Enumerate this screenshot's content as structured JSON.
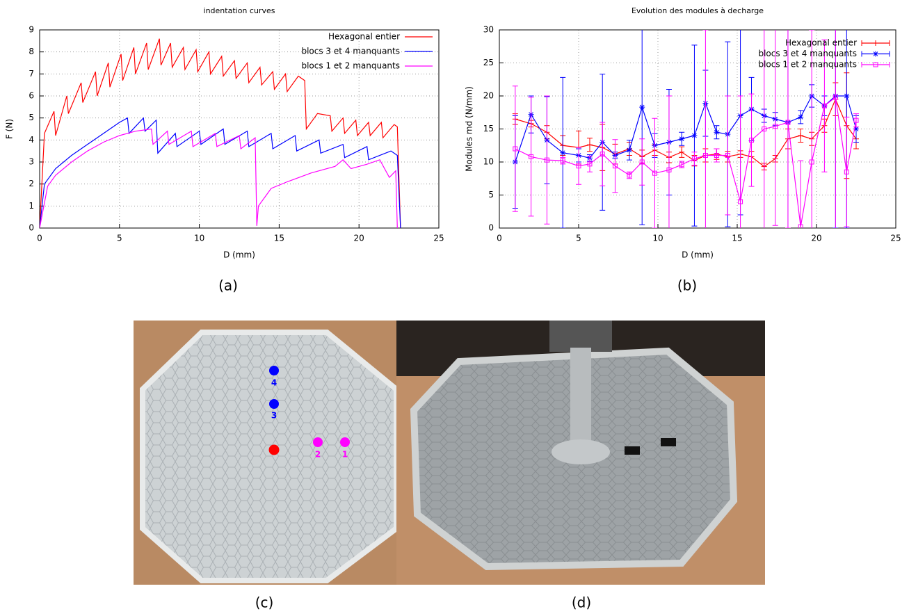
{
  "chart_data": [
    {
      "type": "line",
      "title": "indentation curves",
      "xlabel": "D (mm)",
      "ylabel": "F (N)",
      "xlim": [
        0,
        25
      ],
      "ylim": [
        0,
        9
      ],
      "xticks": [
        0,
        5,
        10,
        15,
        20,
        25
      ],
      "yticks": [
        0,
        1,
        2,
        3,
        4,
        5,
        6,
        7,
        8,
        9
      ],
      "grid": true,
      "legend": "upper right",
      "series": [
        {
          "name": "Hexagonal entier",
          "color": "#ff0000",
          "x": [
            0,
            0.3,
            0.9,
            1.0,
            1.7,
            1.8,
            2.6,
            2.7,
            3.5,
            3.6,
            4.3,
            4.4,
            5.1,
            5.2,
            5.9,
            6.0,
            6.7,
            6.8,
            7.5,
            7.6,
            8.2,
            8.3,
            9.0,
            9.1,
            9.8,
            9.9,
            10.6,
            10.7,
            11.4,
            11.5,
            12.2,
            12.3,
            13.0,
            13.1,
            13.8,
            13.9,
            14.6,
            14.7,
            15.4,
            15.5,
            16.2,
            16.6,
            16.7,
            17.4,
            18.2,
            18.3,
            19.0,
            19.1,
            19.8,
            19.9,
            20.6,
            20.7,
            21.4,
            21.5,
            22.2,
            22.4,
            22.6
          ],
          "values": [
            0,
            4.3,
            5.3,
            4.2,
            6.0,
            5.2,
            6.6,
            5.7,
            7.1,
            6.0,
            7.5,
            6.4,
            7.9,
            6.7,
            8.2,
            7.0,
            8.4,
            7.2,
            8.6,
            7.4,
            8.4,
            7.3,
            8.2,
            7.2,
            8.1,
            7.1,
            8.0,
            7.0,
            7.8,
            6.9,
            7.6,
            6.8,
            7.5,
            6.6,
            7.3,
            6.5,
            7.1,
            6.3,
            7.0,
            6.2,
            6.9,
            6.7,
            4.5,
            5.2,
            5.1,
            4.4,
            5.0,
            4.3,
            4.9,
            4.2,
            4.8,
            4.2,
            4.8,
            4.1,
            4.7,
            4.6,
            0
          ]
        },
        {
          "name": "blocs 3 et 4 manquants",
          "color": "#0000ff",
          "x": [
            0,
            0.3,
            1,
            2,
            3,
            4,
            5,
            5.5,
            5.6,
            6.5,
            6.6,
            7.3,
            7.4,
            8.5,
            8.6,
            10,
            10.1,
            11.5,
            11.6,
            13,
            13.1,
            14.5,
            14.6,
            16,
            16.1,
            17.5,
            17.6,
            19,
            19.1,
            20.5,
            20.6,
            22,
            22.4,
            22.6
          ],
          "values": [
            0,
            2.0,
            2.7,
            3.3,
            3.8,
            4.3,
            4.8,
            5.0,
            4.3,
            5.0,
            4.4,
            4.9,
            3.4,
            4.3,
            3.7,
            4.4,
            3.8,
            4.5,
            3.8,
            4.4,
            3.7,
            4.3,
            3.6,
            4.2,
            3.5,
            4.0,
            3.4,
            3.8,
            3.2,
            3.7,
            3.1,
            3.5,
            3.3,
            0
          ]
        },
        {
          "name": "blocs 1 et 2 manquants",
          "color": "#ff00ff",
          "x": [
            0,
            0.5,
            1,
            2,
            3,
            4,
            5,
            6,
            7,
            7.1,
            8,
            8.1,
            9.5,
            9.6,
            11,
            11.1,
            12.5,
            12.6,
            13.5,
            13.6,
            13.7,
            14.5,
            15.5,
            17,
            18.5,
            19,
            19.5,
            20.5,
            21.3,
            21.9,
            22.3,
            22.4
          ],
          "values": [
            0,
            1.9,
            2.4,
            3.0,
            3.5,
            3.9,
            4.2,
            4.4,
            4.5,
            3.8,
            4.4,
            3.8,
            4.4,
            3.7,
            4.3,
            3.7,
            4.2,
            3.6,
            4.1,
            0.1,
            1.0,
            1.8,
            2.1,
            2.5,
            2.8,
            3.1,
            2.7,
            2.9,
            3.1,
            2.3,
            2.6,
            0
          ]
        }
      ]
    },
    {
      "type": "errorbar",
      "title": "Evolution des modules à decharge",
      "xlabel": "D (mm)",
      "ylabel": "Modules md (N/mm)",
      "xlim": [
        0,
        25
      ],
      "ylim": [
        0,
        30
      ],
      "xticks": [
        0,
        5,
        10,
        15,
        20,
        25
      ],
      "yticks": [
        0,
        5,
        10,
        15,
        20,
        25,
        30
      ],
      "grid": true,
      "legend": "upper right",
      "x": [
        1,
        2,
        3,
        4,
        5,
        5.7,
        6.5,
        7.3,
        8.2,
        9,
        9.8,
        10.7,
        11.5,
        12.3,
        13,
        13.7,
        14.4,
        15.2,
        15.9,
        16.7,
        17.4,
        18.2,
        19,
        19.7,
        20.5,
        21.2,
        21.9,
        22.5
      ],
      "series": [
        {
          "name": "Hexagonal entier",
          "color": "#ff0000",
          "marker": "plus",
          "values": [
            16.5,
            15.8,
            14.5,
            12.5,
            12.2,
            12.6,
            12.2,
            11.2,
            12,
            10.8,
            11.8,
            10.7,
            11.5,
            10.2,
            11,
            11.2,
            10.8,
            11.2,
            10.8,
            9.3,
            10.5,
            13.5,
            14,
            13.5,
            15.5,
            19.5,
            15.5,
            13.5
          ],
          "errors": [
            0.8,
            0.5,
            1,
            1.5,
            2.5,
            1,
            3.5,
            1.5,
            1,
            1,
            0.8,
            0.8,
            0.8,
            0.8,
            1,
            0.8,
            0.8,
            0.5,
            0.8,
            0.5,
            0.5,
            1.5,
            1,
            1,
            1,
            2.5,
            8,
            1.5
          ]
        },
        {
          "name": "blocs 3 et 4 manquants",
          "color": "#0000ff",
          "marker": "star",
          "values": [
            10,
            17.2,
            13.3,
            11.4,
            11,
            10.6,
            13,
            11,
            11.8,
            18.3,
            12.5,
            13,
            13.5,
            14,
            18.9,
            14.5,
            14.2,
            17,
            18,
            17,
            16.5,
            16,
            16.8,
            20,
            18.5,
            20,
            20,
            15
          ],
          "errors": [
            7,
            2.8,
            6.6,
            11.4,
            1,
            0.5,
            10.3,
            0.5,
            1.5,
            17.8,
            1.8,
            8,
            1,
            13.7,
            5,
            1,
            14,
            15,
            4.8,
            1,
            1,
            16,
            1,
            1.7,
            1.5,
            20,
            20,
            2
          ]
        },
        {
          "name": "blocs 1 et 2 manquants",
          "color": "#ff00ff",
          "marker": "square",
          "values": [
            12,
            10.8,
            10.3,
            10.2,
            9.4,
            9.7,
            11.2,
            9.4,
            8,
            10,
            8.3,
            8.8,
            9.6,
            10.5,
            11,
            11,
            11,
            4,
            13.3,
            15,
            15.4,
            16,
            0.2,
            10,
            18.5,
            19.8,
            8.5,
            16.3
          ],
          "errors": [
            9.5,
            9,
            9.7,
            0.5,
            2.8,
            1.2,
            4.8,
            4,
            0.5,
            3.5,
            8.3,
            11.2,
            0.5,
            1,
            19,
            1,
            9,
            16,
            7,
            15.2,
            15,
            16,
            10,
            20,
            10,
            20,
            8.3,
            1
          ]
        }
      ]
    }
  ],
  "captions": [
    "(a)",
    "(b)",
    "(c)",
    "(d)"
  ],
  "photo_labels": [
    "4",
    "3",
    "2",
    "1"
  ]
}
